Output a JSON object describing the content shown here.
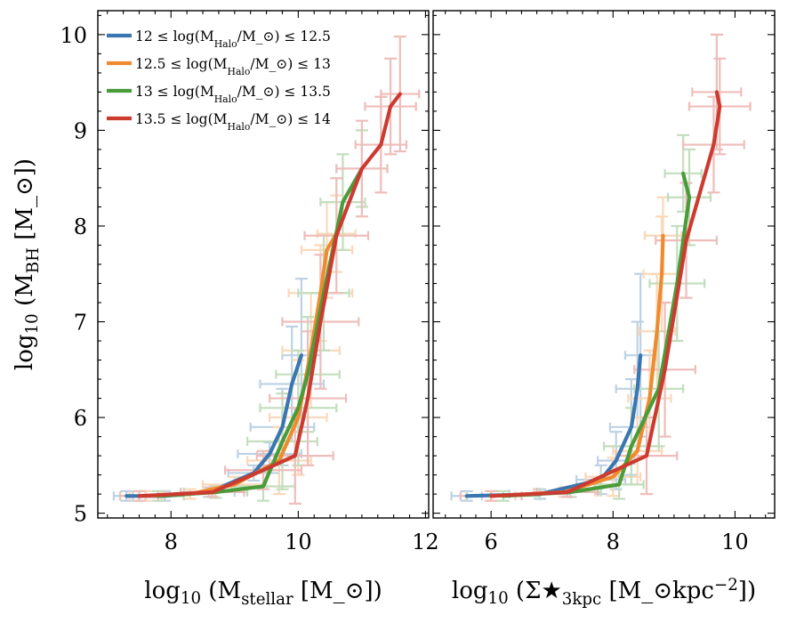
{
  "chart_data": [
    {
      "type": "line",
      "panel": "left",
      "xlabel": "log10 (M_stellar [M_⊙])",
      "ylabel": "log10 (M_BH [M_⊙])",
      "xlim": [
        6.85,
        12.05
      ],
      "ylim": [
        4.95,
        10.25
      ],
      "xticks": [
        8,
        10,
        12
      ],
      "yticks": [
        5,
        6,
        7,
        8,
        9,
        10
      ],
      "legend_position": "upper-left",
      "series": [
        {
          "name": "12 ≤ log(M_Halo/M_⊙) ≤ 12.5",
          "color": "#3a76b0",
          "points": [
            {
              "x": 7.3,
              "y": 5.18,
              "xerr": 0.2,
              "yerr": 0.05
            },
            {
              "x": 7.9,
              "y": 5.18,
              "xerr": 0.3,
              "yerr": 0.05
            },
            {
              "x": 8.6,
              "y": 5.22,
              "xerr": 0.4,
              "yerr": 0.05
            },
            {
              "x": 9.3,
              "y": 5.42,
              "xerr": 0.4,
              "yerr": 0.08
            },
            {
              "x": 9.55,
              "y": 5.62,
              "xerr": 0.5,
              "yerr": 0.12
            },
            {
              "x": 9.75,
              "y": 5.9,
              "xerr": 0.5,
              "yerr": 0.4
            },
            {
              "x": 9.9,
              "y": 6.35,
              "xerr": 0.5,
              "yerr": 0.6
            },
            {
              "x": 10.05,
              "y": 6.65,
              "xerr": 0.3,
              "yerr": 0.8
            }
          ]
        },
        {
          "name": "12.5 ≤ log(M_Halo/M_⊙) ≤ 13",
          "color": "#f08a2e",
          "points": [
            {
              "x": 7.6,
              "y": 5.18,
              "xerr": 0.25,
              "yerr": 0.05
            },
            {
              "x": 8.3,
              "y": 5.2,
              "xerr": 0.4,
              "yerr": 0.05
            },
            {
              "x": 9.0,
              "y": 5.3,
              "xerr": 0.5,
              "yerr": 0.08
            },
            {
              "x": 9.7,
              "y": 5.55,
              "xerr": 0.5,
              "yerr": 0.35
            },
            {
              "x": 10.0,
              "y": 6.0,
              "xerr": 0.45,
              "yerr": 0.6
            },
            {
              "x": 10.2,
              "y": 6.7,
              "xerr": 0.45,
              "yerr": 0.6
            },
            {
              "x": 10.35,
              "y": 7.3,
              "xerr": 0.5,
              "yerr": 0.5
            },
            {
              "x": 10.45,
              "y": 7.75,
              "xerr": 0.4,
              "yerr": 0.5
            },
            {
              "x": 10.6,
              "y": 7.92,
              "xerr": 0.3,
              "yerr": 0.4
            }
          ]
        },
        {
          "name": "13 ≤ log(M_Halo/M_⊙) ≤ 13.5",
          "color": "#4a9c3a",
          "points": [
            {
              "x": 7.8,
              "y": 5.18,
              "xerr": 0.4,
              "yerr": 0.05
            },
            {
              "x": 8.7,
              "y": 5.22,
              "xerr": 0.5,
              "yerr": 0.06
            },
            {
              "x": 9.45,
              "y": 5.28,
              "xerr": 0.5,
              "yerr": 0.15
            },
            {
              "x": 9.75,
              "y": 5.75,
              "xerr": 0.55,
              "yerr": 0.5
            },
            {
              "x": 10.0,
              "y": 6.1,
              "xerr": 0.6,
              "yerr": 0.6
            },
            {
              "x": 10.15,
              "y": 6.45,
              "xerr": 0.5,
              "yerr": 0.6
            },
            {
              "x": 10.4,
              "y": 7.3,
              "xerr": 0.4,
              "yerr": 0.6
            },
            {
              "x": 10.7,
              "y": 8.25,
              "xerr": 0.35,
              "yerr": 0.5
            },
            {
              "x": 11.0,
              "y": 8.6,
              "xerr": 0.4,
              "yerr": 0.4
            }
          ]
        },
        {
          "name": "13.5 ≤ log(M_Halo/M_⊙) ≤ 14",
          "color": "#cc3a30",
          "points": [
            {
              "x": 7.5,
              "y": 5.18,
              "xerr": 0.3,
              "yerr": 0.05
            },
            {
              "x": 8.65,
              "y": 5.22,
              "xerr": 0.5,
              "yerr": 0.05
            },
            {
              "x": 9.45,
              "y": 5.45,
              "xerr": 0.6,
              "yerr": 0.2
            },
            {
              "x": 9.95,
              "y": 5.6,
              "xerr": 0.6,
              "yerr": 0.5
            },
            {
              "x": 10.15,
              "y": 6.2,
              "xerr": 0.6,
              "yerr": 0.7
            },
            {
              "x": 10.35,
              "y": 7.0,
              "xerr": 0.6,
              "yerr": 0.7
            },
            {
              "x": 10.6,
              "y": 7.9,
              "xerr": 0.5,
              "yerr": 0.6
            },
            {
              "x": 11.0,
              "y": 8.6,
              "xerr": 0.4,
              "yerr": 0.5
            },
            {
              "x": 11.3,
              "y": 8.85,
              "xerr": 0.4,
              "yerr": 0.5
            },
            {
              "x": 11.45,
              "y": 9.25,
              "xerr": 0.4,
              "yerr": 0.5
            },
            {
              "x": 11.6,
              "y": 9.38,
              "xerr": 0.3,
              "yerr": 0.6
            }
          ]
        }
      ]
    },
    {
      "type": "line",
      "panel": "right",
      "xlabel": "log10 (Σ★_3kpc [M_⊙kpc^−2])",
      "xlim": [
        5.05,
        10.65
      ],
      "ylim": [
        4.95,
        10.25
      ],
      "xticks": [
        6,
        8,
        10
      ],
      "yticks": [
        5,
        6,
        7,
        8,
        9,
        10
      ],
      "series": [
        {
          "name": "12 ≤ log(M_Halo/M_⊙) ≤ 12.5",
          "color": "#3a76b0",
          "points": [
            {
              "x": 5.6,
              "y": 5.18,
              "xerr": 0.25,
              "yerr": 0.05
            },
            {
              "x": 6.8,
              "y": 5.2,
              "xerr": 0.5,
              "yerr": 0.05
            },
            {
              "x": 7.8,
              "y": 5.35,
              "xerr": 0.4,
              "yerr": 0.15
            },
            {
              "x": 8.05,
              "y": 5.55,
              "xerr": 0.3,
              "yerr": 0.3
            },
            {
              "x": 8.3,
              "y": 5.9,
              "xerr": 0.35,
              "yerr": 0.5
            },
            {
              "x": 8.4,
              "y": 6.3,
              "xerr": 0.35,
              "yerr": 0.7
            },
            {
              "x": 8.45,
              "y": 6.65,
              "xerr": 0.25,
              "yerr": 0.85
            }
          ]
        },
        {
          "name": "12.5 ≤ log(M_Halo/M_⊙) ≤ 13",
          "color": "#f08a2e",
          "points": [
            {
              "x": 6.0,
              "y": 5.18,
              "xerr": 0.4,
              "yerr": 0.05
            },
            {
              "x": 7.2,
              "y": 5.22,
              "xerr": 0.5,
              "yerr": 0.05
            },
            {
              "x": 8.0,
              "y": 5.38,
              "xerr": 0.45,
              "yerr": 0.2
            },
            {
              "x": 8.4,
              "y": 5.65,
              "xerr": 0.4,
              "yerr": 0.35
            },
            {
              "x": 8.6,
              "y": 6.2,
              "xerr": 0.35,
              "yerr": 0.5
            },
            {
              "x": 8.72,
              "y": 6.9,
              "xerr": 0.3,
              "yerr": 0.6
            },
            {
              "x": 8.8,
              "y": 7.5,
              "xerr": 0.3,
              "yerr": 0.6
            },
            {
              "x": 8.82,
              "y": 7.9,
              "xerr": 0.3,
              "yerr": 0.4
            }
          ]
        },
        {
          "name": "13 ≤ log(M_Halo/M_⊙) ≤ 13.5",
          "color": "#4a9c3a",
          "points": [
            {
              "x": 6.2,
              "y": 5.18,
              "xerr": 0.6,
              "yerr": 0.05
            },
            {
              "x": 7.3,
              "y": 5.22,
              "xerr": 0.5,
              "yerr": 0.05
            },
            {
              "x": 8.1,
              "y": 5.3,
              "xerr": 0.4,
              "yerr": 0.15
            },
            {
              "x": 8.3,
              "y": 5.7,
              "xerr": 0.45,
              "yerr": 0.4
            },
            {
              "x": 8.75,
              "y": 6.3,
              "xerr": 0.4,
              "yerr": 0.6
            },
            {
              "x": 9.05,
              "y": 7.4,
              "xerr": 0.45,
              "yerr": 0.6
            },
            {
              "x": 9.25,
              "y": 8.3,
              "xerr": 0.35,
              "yerr": 0.5
            },
            {
              "x": 9.15,
              "y": 8.55,
              "xerr": 0.3,
              "yerr": 0.4
            }
          ]
        },
        {
          "name": "13.5 ≤ log(M_Halo/M_⊙) ≤ 14",
          "color": "#cc3a30",
          "points": [
            {
              "x": 6.0,
              "y": 5.18,
              "xerr": 0.5,
              "yerr": 0.05
            },
            {
              "x": 7.25,
              "y": 5.22,
              "xerr": 0.5,
              "yerr": 0.05
            },
            {
              "x": 8.55,
              "y": 5.6,
              "xerr": 0.5,
              "yerr": 0.4
            },
            {
              "x": 8.85,
              "y": 6.5,
              "xerr": 0.5,
              "yerr": 0.7
            },
            {
              "x": 9.2,
              "y": 7.85,
              "xerr": 0.5,
              "yerr": 0.6
            },
            {
              "x": 9.65,
              "y": 8.85,
              "xerr": 0.5,
              "yerr": 0.5
            },
            {
              "x": 9.75,
              "y": 9.25,
              "xerr": 0.5,
              "yerr": 0.5
            },
            {
              "x": 9.7,
              "y": 9.4,
              "xerr": 0.4,
              "yerr": 0.6
            }
          ]
        }
      ]
    }
  ]
}
